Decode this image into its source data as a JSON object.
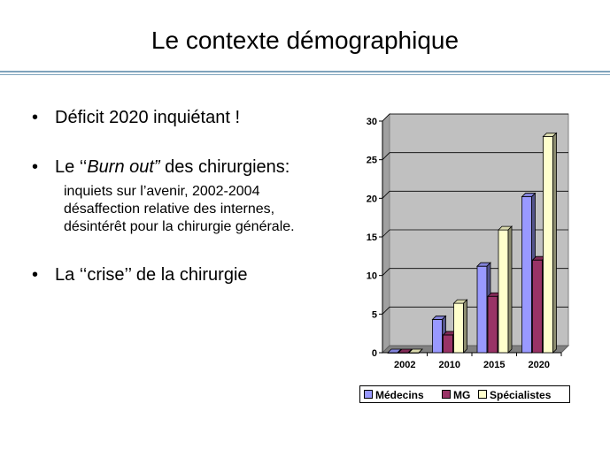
{
  "slide": {
    "title": "Le contexte démographique"
  },
  "bullets": {
    "b1": "Déficit 2020 inquiétant !",
    "b2_pre": "Le ‘‘",
    "b2_em": "Burn out”",
    "b2_post": " des chirurgiens:",
    "sub1": "inquiets sur l’avenir, 2002-2004",
    "sub2": "désaffection relative des internes,",
    "sub3": "désintérêt pour la chirurgie générale.",
    "b3": "La ‘‘crise’’ de la chirurgie",
    "marker": "•"
  },
  "chart_data": {
    "type": "bar",
    "categories": [
      "2002",
      "2010",
      "2015",
      "2020"
    ],
    "series": [
      {
        "name": "Médecins",
        "values": [
          0,
          4.3,
          11.2,
          20.2
        ],
        "color": "#9999ff"
      },
      {
        "name": "MG",
        "values": [
          0,
          2.3,
          7.3,
          12.0
        ],
        "color": "#993366"
      },
      {
        "name": "Spécialistes",
        "values": [
          0,
          6.4,
          15.9,
          28.0
        ],
        "color": "#ffffcc"
      }
    ],
    "ylim": [
      0,
      30
    ],
    "yticks": [
      "0",
      "5",
      "10",
      "15",
      "20",
      "25",
      "30"
    ],
    "grid": true,
    "legend_position": "bottom",
    "plot_background": "#c0c0c0"
  }
}
